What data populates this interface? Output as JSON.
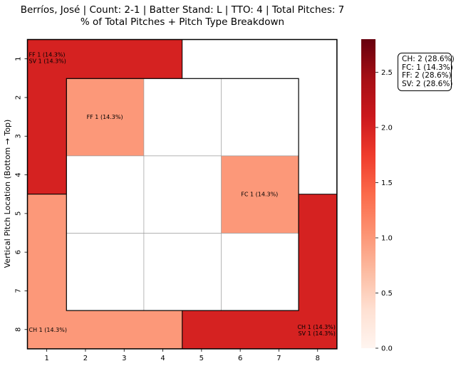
{
  "chart_data": {
    "type": "heatmap",
    "title_line1": "Berríos, José | Count: 2-1 | Batter Stand: L | TTO: 4 | Total Pitches: 7",
    "title_line2": "% of Total Pitches + Pitch Type Breakdown",
    "ylabel": "Vertical Pitch Location (Bottom → Top)",
    "xlabel": "",
    "x_ticks": [
      "1",
      "2",
      "3",
      "4",
      "5",
      "6",
      "7",
      "8"
    ],
    "y_ticks": [
      "1",
      "2",
      "3",
      "4",
      "5",
      "6",
      "7",
      "8"
    ],
    "colorbar": {
      "min": 0,
      "max": 2.8,
      "colormap": "Reds",
      "ticks": [
        "0.0",
        "0.5",
        "1.0",
        "1.5",
        "2.0",
        "2.5"
      ],
      "tick_values": [
        0,
        0.5,
        1.0,
        1.5,
        2.0,
        2.5
      ]
    },
    "zones": [
      {
        "col_range": [
          1,
          8
        ],
        "row_range": [
          1,
          8
        ],
        "value": 0,
        "labels": []
      },
      {
        "col_range": [
          1,
          4
        ],
        "row_range": [
          1,
          4
        ],
        "value": 2,
        "labels": [
          "FF 1 (14.3%)",
          "SV 1 (14.3%)"
        ],
        "label_pos": "top-left"
      },
      {
        "col_range": [
          5,
          8
        ],
        "row_range": [
          5,
          8
        ],
        "value": 2,
        "labels": [
          "CH 1 (14.3%)",
          "SV 1 (14.3%)"
        ],
        "label_pos": "bottom-right"
      },
      {
        "col_range": [
          1,
          4
        ],
        "row_range": [
          5,
          8
        ],
        "value": 1,
        "labels": [
          "CH 1 (14.3%)"
        ],
        "label_pos": "bottom-left"
      },
      {
        "col_range": [
          2,
          3
        ],
        "row_range": [
          2,
          3
        ],
        "value": 1,
        "labels": [
          "FF 1 (14.3%)"
        ],
        "label_pos": "center",
        "inner": true
      },
      {
        "col_range": [
          6,
          7
        ],
        "row_range": [
          4,
          5
        ],
        "value": 1,
        "labels": [
          "FC 1 (14.3%)"
        ],
        "label_pos": "center",
        "inner": true
      }
    ],
    "inner_grid": {
      "col_range": [
        2,
        7
      ],
      "row_range": [
        2,
        7
      ],
      "divisions": 3
    },
    "pitch_summary": [
      "CH: 2 (28.6%)",
      "FC: 1 (14.3%)",
      "FF: 2 (28.6%)",
      "SV: 2 (28.6%)"
    ]
  }
}
